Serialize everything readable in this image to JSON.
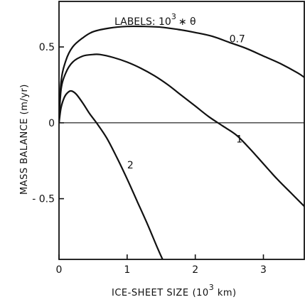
{
  "chart_data": {
    "type": "line",
    "title": "",
    "xlabel": "ICE-SHEET SIZE",
    "xlabel_unit_base": "(10",
    "xlabel_unit_exp": "3",
    "xlabel_unit_tail": " km)",
    "ylabel": "MASS BALANCE (m/yr)",
    "annotation": {
      "prefix": "LABELS: 10",
      "exp": "3",
      "suffix": "∗ θ"
    },
    "xlim": [
      0,
      3.6
    ],
    "ylim": [
      -0.9,
      0.8
    ],
    "x_ticks": [
      0,
      1,
      2,
      3
    ],
    "y_ticks": [
      0.5,
      0,
      -0.5
    ],
    "x_tick_labels": [
      "0",
      "1",
      "2",
      "3"
    ],
    "y_tick_labels": [
      "0.5",
      "0",
      "- 0.5"
    ],
    "zero_line": true,
    "series": [
      {
        "name": "0.7",
        "label_at": [
          2.5,
          0.53
        ],
        "x": [
          0,
          0.03,
          0.1,
          0.2,
          0.35,
          0.5,
          0.75,
          1.0,
          1.25,
          1.5,
          1.75,
          2.0,
          2.25,
          2.5,
          2.75,
          3.0,
          3.25,
          3.5,
          3.6
        ],
        "y": [
          0,
          0.27,
          0.41,
          0.5,
          0.56,
          0.6,
          0.625,
          0.635,
          0.635,
          0.63,
          0.615,
          0.595,
          0.57,
          0.53,
          0.49,
          0.44,
          0.39,
          0.33,
          0.3
        ]
      },
      {
        "name": "1",
        "label_at": [
          2.6,
          -0.13
        ],
        "x": [
          0,
          0.03,
          0.1,
          0.2,
          0.35,
          0.5,
          0.6,
          0.8,
          1.0,
          1.2,
          1.4,
          1.6,
          1.8,
          2.0,
          2.2,
          2.4,
          2.6,
          2.8,
          3.0,
          3.2,
          3.4,
          3.6
        ],
        "y": [
          0,
          0.22,
          0.33,
          0.4,
          0.44,
          0.45,
          0.45,
          0.43,
          0.4,
          0.36,
          0.31,
          0.25,
          0.18,
          0.11,
          0.04,
          -0.02,
          -0.08,
          -0.17,
          -0.27,
          -0.37,
          -0.46,
          -0.55
        ]
      },
      {
        "name": "2",
        "label_at": [
          1.0,
          -0.3
        ],
        "x": [
          0,
          0.03,
          0.08,
          0.13,
          0.18,
          0.25,
          0.35,
          0.45,
          0.55,
          0.7,
          0.85,
          1.0,
          1.15,
          1.3,
          1.45,
          1.52
        ],
        "y": [
          0,
          0.1,
          0.17,
          0.2,
          0.21,
          0.19,
          0.13,
          0.06,
          0.0,
          -0.1,
          -0.23,
          -0.37,
          -0.52,
          -0.67,
          -0.83,
          -0.9
        ]
      }
    ]
  }
}
